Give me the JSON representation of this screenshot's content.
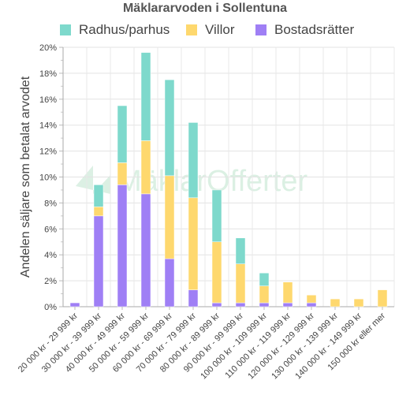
{
  "chart_data": {
    "type": "bar",
    "stacked": true,
    "title": "Mäklararvoden i Sollentuna",
    "ylabel": "Andelen säljare som betalat arvodet",
    "xlabel": "",
    "ylim": [
      0,
      20
    ],
    "yticks": [
      "0%",
      "2%",
      "4%",
      "6%",
      "8%",
      "10%",
      "12%",
      "14%",
      "16%",
      "18%",
      "20%"
    ],
    "grid": true,
    "legend_position": "top",
    "categories": [
      "20 000 kr - 29 999 kr",
      "30 000 kr - 39 999 kr",
      "40 000 kr - 49 999 kr",
      "50 000 kr - 59 999 kr",
      "60 000 kr - 69 999 kr",
      "70 000 kr - 79 999 kr",
      "80 000 kr - 89 999 kr",
      "90 000 kr - 99 999 kr",
      "100 000 kr - 109 999 kr",
      "110 000 kr - 119 999 kr",
      "120 000 kr - 129 999 kr",
      "130 000 kr - 139 999 kr",
      "140 000 kr - 149 999 kr",
      "150 000 kr eller mer"
    ],
    "series": [
      {
        "name": "Bostadsrätter",
        "color": "#9f7ff5",
        "values": [
          0.3,
          7.0,
          9.4,
          8.7,
          3.7,
          1.3,
          0.3,
          0.3,
          0.3,
          0.3,
          0.3,
          0,
          0,
          0
        ]
      },
      {
        "name": "Villor",
        "color": "#fed86e",
        "values": [
          0,
          0.7,
          1.7,
          4.1,
          6.4,
          7.1,
          4.7,
          3.0,
          1.3,
          1.6,
          0.6,
          0.6,
          0.6,
          1.3
        ]
      },
      {
        "name": "Radhus/parhus",
        "color": "#7ed9cc",
        "values": [
          0,
          1.7,
          4.4,
          6.8,
          7.4,
          5.8,
          4.0,
          2.0,
          1.0,
          0,
          0,
          0,
          0,
          0
        ]
      }
    ],
    "legend_order": [
      "Radhus/parhus",
      "Villor",
      "Bostadsrätter"
    ],
    "watermark": "MäklarOfferter"
  }
}
